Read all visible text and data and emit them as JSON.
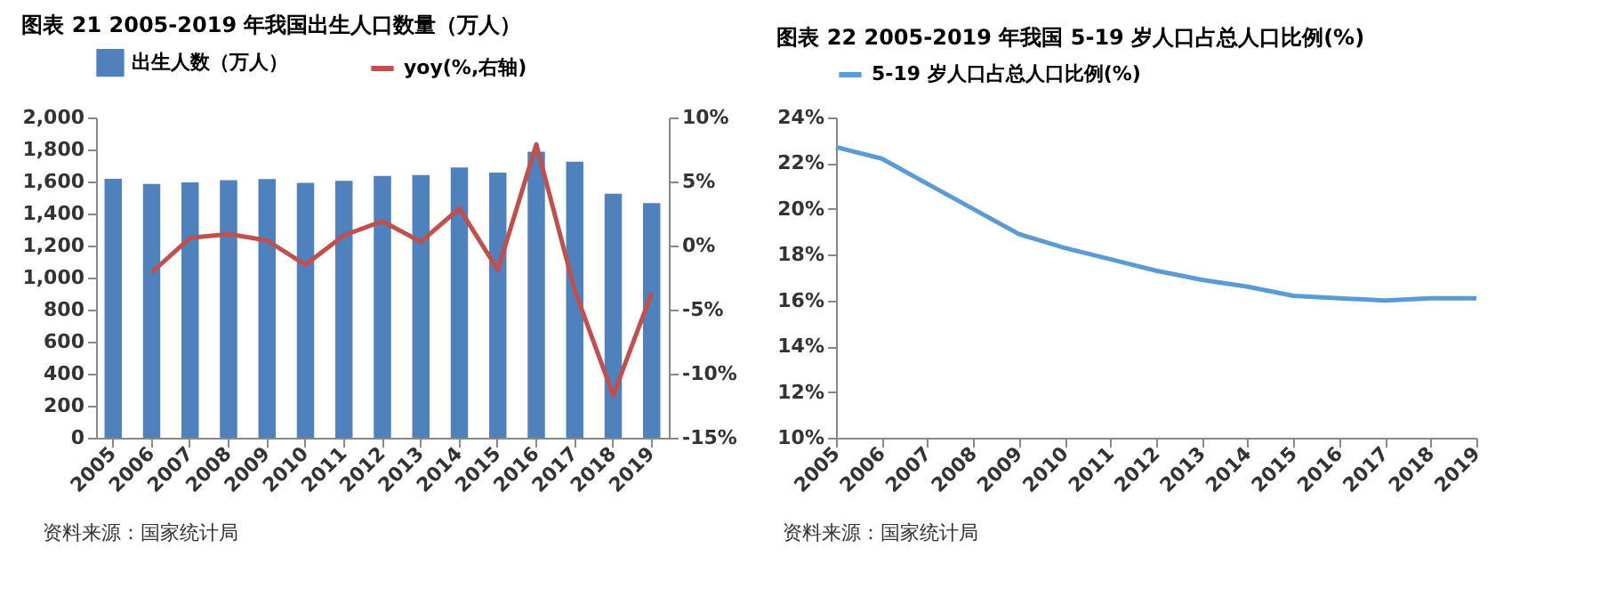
{
  "chart_data": [
    {
      "type": "bar",
      "title": "图表 21 2005-2019 年我国出生人口数量（万人）",
      "categories": [
        "2005",
        "2006",
        "2007",
        "2008",
        "2009",
        "2010",
        "2011",
        "2012",
        "2013",
        "2014",
        "2015",
        "2016",
        "2017",
        "2018",
        "2019"
      ],
      "series": [
        {
          "name": "出生人数（万人）",
          "type": "bar",
          "color": "#4f81bd",
          "values": [
            1617,
            1585,
            1594,
            1608,
            1615,
            1592,
            1604,
            1635,
            1640,
            1687,
            1655,
            1786,
            1723,
            1523,
            1465
          ]
        },
        {
          "name": "yoy(%,右轴)",
          "type": "line",
          "axis": "y2",
          "color": "#c0504d",
          "values": [
            null,
            -2.1,
            0.6,
            0.9,
            0.4,
            -1.5,
            0.8,
            1.9,
            0.3,
            2.9,
            -1.9,
            7.9,
            -3.5,
            -11.7,
            -3.7
          ]
        }
      ],
      "ylim": [
        0,
        2000
      ],
      "yticks": [
        0,
        200,
        400,
        600,
        800,
        {
          "value": 1000,
          "label": "1,000"
        },
        {
          "value": 1200,
          "label": "1,200"
        },
        {
          "value": 1400,
          "label": "1,400"
        },
        {
          "value": 1600,
          "label": "1,600"
        },
        {
          "value": 1800,
          "label": "1,800"
        },
        {
          "value": 2000,
          "label": "2,000"
        }
      ],
      "y2lim": [
        -15,
        10
      ],
      "y2ticks": [
        {
          "value": -15,
          "label": "-15%"
        },
        {
          "value": -10,
          "label": "-10%"
        },
        {
          "value": -5,
          "label": "-5%"
        },
        {
          "value": 0,
          "label": "0%"
        },
        {
          "value": 5,
          "label": "5%"
        },
        {
          "value": 10,
          "label": "10%"
        }
      ],
      "legend": "top",
      "grid": false,
      "annotations": [
        "资料来源：国家统计局"
      ]
    },
    {
      "type": "line",
      "title": "图表 22 2005-2019 年我国 5-19 岁人口占总人口比例(%)",
      "categories": [
        "2005",
        "2006",
        "2007",
        "2008",
        "2009",
        "2010",
        "2011",
        "2012",
        "2013",
        "2014",
        "2015",
        "2016",
        "2017",
        "2018",
        "2019"
      ],
      "series": [
        {
          "name": "5-19 岁人口占总人口比例(%)",
          "color": "#5b9bd5",
          "values": [
            22.7,
            22.2,
            21.1,
            20.0,
            18.9,
            18.3,
            17.8,
            17.3,
            16.9,
            16.6,
            16.2,
            16.1,
            16.0,
            16.1,
            16.1
          ]
        }
      ],
      "ylim": [
        10,
        24
      ],
      "yticks": [
        {
          "value": 10,
          "label": "10%"
        },
        {
          "value": 12,
          "label": "12%"
        },
        {
          "value": 14,
          "label": "14%"
        },
        {
          "value": 16,
          "label": "16%"
        },
        {
          "value": 18,
          "label": "18%"
        },
        {
          "value": 20,
          "label": "20%"
        },
        {
          "value": 22,
          "label": "22%"
        },
        {
          "value": 24,
          "label": "24%"
        }
      ],
      "legend": "top",
      "grid": false,
      "annotations": [
        "资料来源：国家统计局"
      ]
    }
  ]
}
